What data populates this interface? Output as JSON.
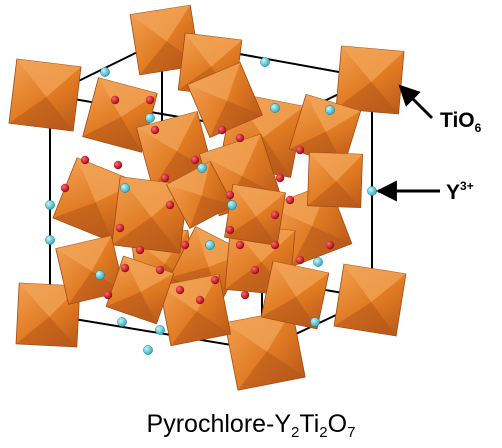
{
  "labels": {
    "octahedra": {
      "base": "TiO",
      "sub": "6"
    },
    "cation": {
      "base": "Y",
      "sup": "3+"
    }
  },
  "caption": {
    "prefix": "Pyrochlore-Y",
    "s1": "2",
    "mid1": "Ti",
    "s2": "2",
    "mid2": "O",
    "s3": "7"
  },
  "colors": {
    "octahedron": "#e07a22",
    "octahedron_dark": "#b8581a",
    "octahedron_light": "#f09a4a",
    "oxygen": "#c0101c",
    "yttrium": "#42c6d6",
    "frame": "#000000"
  }
}
